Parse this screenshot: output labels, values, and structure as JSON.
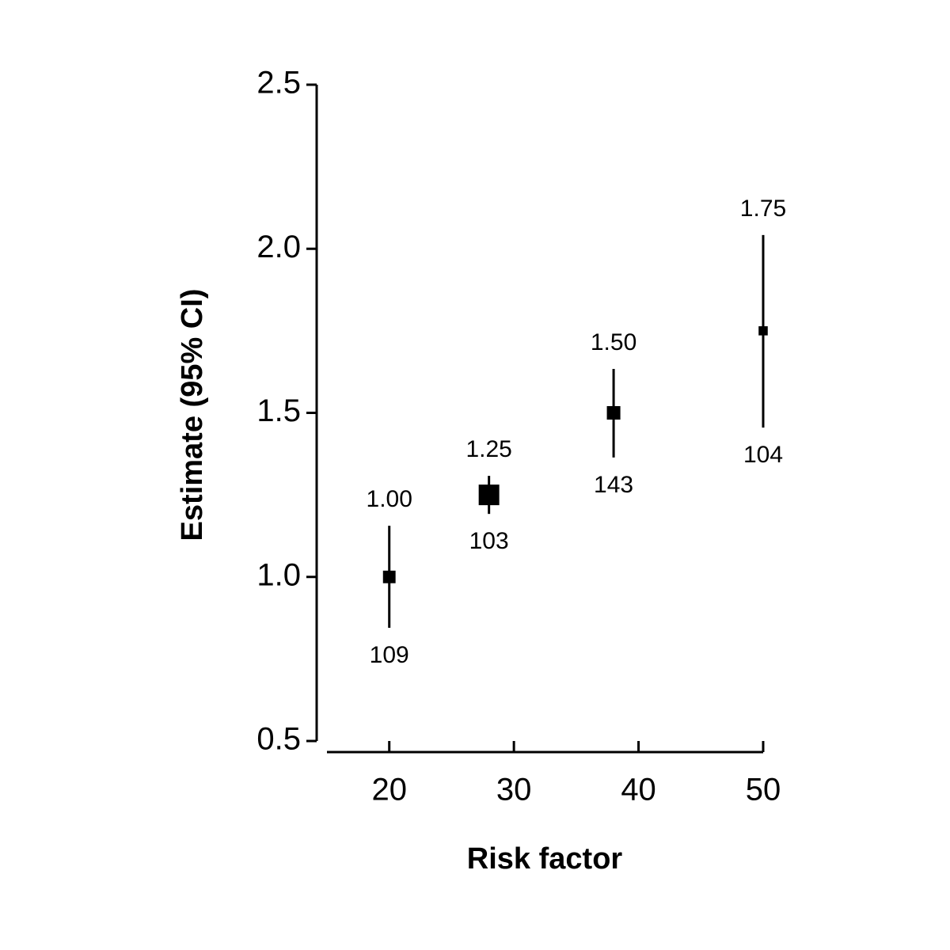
{
  "chart_data": {
    "type": "errorbar",
    "y_label": "Estimate (95% CI)",
    "x_label": "Risk factor",
    "x": [
      20,
      28,
      38,
      50
    ],
    "values": [
      1.0,
      1.25,
      1.5,
      1.75
    ],
    "value_labels": [
      "1.00",
      "1.25",
      "1.50",
      "1.75"
    ],
    "lower": [
      0.845,
      1.192,
      1.364,
      1.455
    ],
    "upper": [
      1.156,
      1.308,
      1.634,
      2.042
    ],
    "counts": [
      109,
      103,
      143,
      104
    ],
    "color": "#000000",
    "xlim": [
      15,
      50
    ],
    "xticks": [
      20,
      30,
      40,
      50
    ],
    "ylim": [
      0.5,
      2.5
    ],
    "yticks": [
      0.5,
      {
        "value": 1,
        "label": "1.0"
      },
      1.5,
      {
        "value": 2,
        "label": "2.0"
      },
      2.5
    ]
  }
}
